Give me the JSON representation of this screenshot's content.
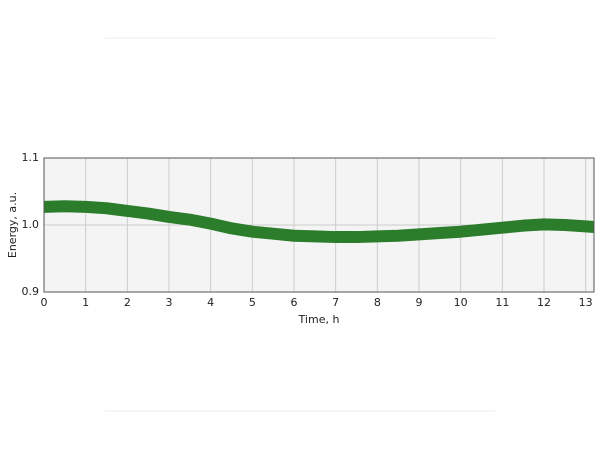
{
  "chart_data": {
    "type": "line",
    "xlabel": "Time, h",
    "ylabel": "Energy, a.u.",
    "x": [
      0,
      0.5,
      1,
      1.5,
      2,
      2.5,
      3,
      3.5,
      4,
      4.5,
      5,
      5.5,
      6,
      6.5,
      7,
      7.5,
      8,
      8.5,
      9,
      9.5,
      10,
      10.5,
      11,
      11.5,
      12,
      12.5,
      13,
      13.2
    ],
    "series": [
      {
        "color": "#2b7d2b",
        "values": [
          1.027,
          1.028,
          1.027,
          1.025,
          1.021,
          1.017,
          1.012,
          1.008,
          1.002,
          0.995,
          0.99,
          0.987,
          0.984,
          0.983,
          0.982,
          0.982,
          0.983,
          0.984,
          0.986,
          0.988,
          0.99,
          0.993,
          0.996,
          0.999,
          1.001,
          1.0,
          0.998,
          0.997
        ]
      }
    ],
    "xlim": [
      0,
      13.2
    ],
    "ylim": [
      0.9,
      1.1
    ],
    "xticks": [
      0,
      1,
      2,
      3,
      4,
      5,
      6,
      7,
      8,
      9,
      10,
      11,
      12,
      13
    ],
    "yticks": [
      0.9,
      {
        "value": 1,
        "label": "1.0"
      },
      1.1
    ],
    "grid": true
  }
}
